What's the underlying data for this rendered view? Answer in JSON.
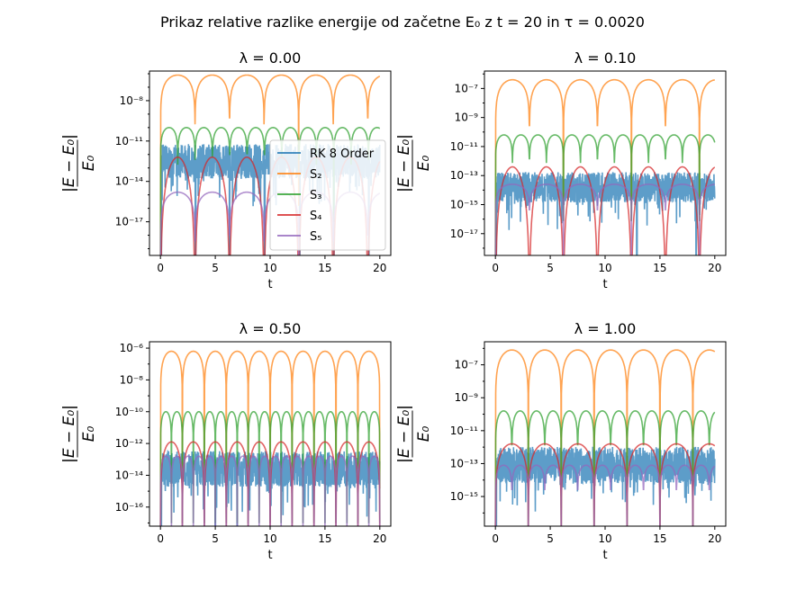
{
  "figure": {
    "suptitle": "Prikaz relative razlike energije od začetne E₀ z t = 20 in τ = 0.0020"
  },
  "colors": {
    "RK 8 Order": "#1f77b4",
    "S2": "#ff7f0e",
    "S3": "#2ca02c",
    "S4": "#d62728",
    "S5": "#9467bd"
  },
  "chart_data": [
    {
      "type": "line",
      "title": "λ = 0.00",
      "xlabel": "t",
      "ylabel": "|E − E₀| / E₀",
      "yscale": "log",
      "xlim": [
        -1,
        21
      ],
      "ylim_exp": [
        -19.5,
        -5.8
      ],
      "x_ticks": [
        0,
        5,
        10,
        15,
        20
      ],
      "y_tick_exps": [
        -17,
        -14,
        -11,
        -8
      ],
      "legend": {
        "placement": "center-right",
        "entries": [
          "RK 8 Order",
          "S₂",
          "S₃",
          "S₄",
          "S₅"
        ]
      },
      "series": [
        {
          "name": "RK 8 Order",
          "kind": "noise",
          "level_exp": -12.5,
          "spread": 1.6,
          "spikes": [
            3.2,
            6.3,
            9.5,
            12.7,
            15.8,
            19.0
          ],
          "floor_exp": -19.5
        },
        {
          "name": "S₂",
          "kind": "arches",
          "peak_exp": -6.1,
          "period": 3.15,
          "depth": 1.8
        },
        {
          "name": "S₃",
          "kind": "arches",
          "peak_exp": -10.0,
          "period": 1.58,
          "depth": 1.3
        },
        {
          "name": "S₄",
          "kind": "arches",
          "peak_exp": -12.2,
          "period": 3.15,
          "depth": 7.0
        },
        {
          "name": "S₅",
          "kind": "arches",
          "peak_exp": -14.8,
          "period": 3.15,
          "depth": 1.8
        }
      ]
    },
    {
      "type": "line",
      "title": "λ = 0.10",
      "xlabel": "t",
      "ylabel": "|E − E₀| / E₀",
      "yscale": "log",
      "xlim": [
        -1,
        21
      ],
      "ylim_exp": [
        -18.5,
        -5.8
      ],
      "x_ticks": [
        0,
        5,
        10,
        15,
        20
      ],
      "y_tick_exps": [
        -17,
        -15,
        -13,
        -11,
        -9,
        -7
      ],
      "series": [
        {
          "name": "RK 8 Order",
          "kind": "noise",
          "level_exp": -13.8,
          "spread": 1.3,
          "spikes": [
            12.9,
            18.3
          ],
          "floor_exp": -18.5
        },
        {
          "name": "S₂",
          "kind": "arches",
          "peak_exp": -6.4,
          "period": 3.1,
          "depth": 1.8
        },
        {
          "name": "S₃",
          "kind": "arches",
          "peak_exp": -10.2,
          "period": 1.55,
          "depth": 1.1
        },
        {
          "name": "S₄",
          "kind": "arches",
          "peak_exp": -12.4,
          "period": 3.1,
          "depth": 6.0
        },
        {
          "name": "S₅",
          "kind": "arches",
          "peak_exp": -13.6,
          "period": 3.1,
          "depth": 1.0
        }
      ]
    },
    {
      "type": "line",
      "title": "λ = 0.50",
      "xlabel": "t",
      "ylabel": "|E − E₀| / E₀",
      "yscale": "log",
      "xlim": [
        -1,
        21
      ],
      "ylim_exp": [
        -17.2,
        -5.6
      ],
      "x_ticks": [
        0,
        5,
        10,
        15,
        20
      ],
      "y_tick_exps": [
        -16,
        -14,
        -12,
        -10,
        -8,
        -6
      ],
      "series": [
        {
          "name": "RK 8 Order",
          "kind": "noise",
          "level_exp": -13.6,
          "spread": 1.4,
          "spikes": [
            5.0,
            7.0
          ],
          "floor_exp": -17.2
        },
        {
          "name": "S₂",
          "kind": "arches",
          "peak_exp": -6.2,
          "period": 2.0,
          "depth": 1.6
        },
        {
          "name": "S₃",
          "kind": "arches",
          "peak_exp": -10.0,
          "period": 1.0,
          "depth": 1.3
        },
        {
          "name": "S₄",
          "kind": "arches",
          "peak_exp": -11.9,
          "period": 2.0,
          "depth": 2.5
        },
        {
          "name": "S₅",
          "kind": "arches",
          "peak_exp": -12.8,
          "period": 1.0,
          "depth": 1.3
        }
      ]
    },
    {
      "type": "line",
      "title": "λ = 1.00",
      "xlabel": "t",
      "ylabel": "|E − E₀| / E₀",
      "yscale": "log",
      "xlim": [
        -1,
        21
      ],
      "ylim_exp": [
        -16.8,
        -5.6
      ],
      "x_ticks": [
        0,
        5,
        10,
        15,
        20
      ],
      "y_tick_exps": [
        -15,
        -13,
        -11,
        -9,
        -7
      ],
      "series": [
        {
          "name": "RK 8 Order",
          "kind": "noise",
          "level_exp": -13.1,
          "spread": 1.4,
          "spikes": [
            0.05
          ],
          "floor_exp": -16.8
        },
        {
          "name": "S₂",
          "kind": "arches",
          "peak_exp": -6.1,
          "period": 3.0,
          "depth": 1.8
        },
        {
          "name": "S₃",
          "kind": "arches",
          "peak_exp": -9.8,
          "period": 1.5,
          "depth": 1.4
        },
        {
          "name": "S₄",
          "kind": "arches",
          "peak_exp": -11.8,
          "period": 3.0,
          "depth": 2.2
        },
        {
          "name": "S₅",
          "kind": "arches",
          "peak_exp": -13.1,
          "period": 1.5,
          "depth": 1.0
        }
      ]
    }
  ]
}
